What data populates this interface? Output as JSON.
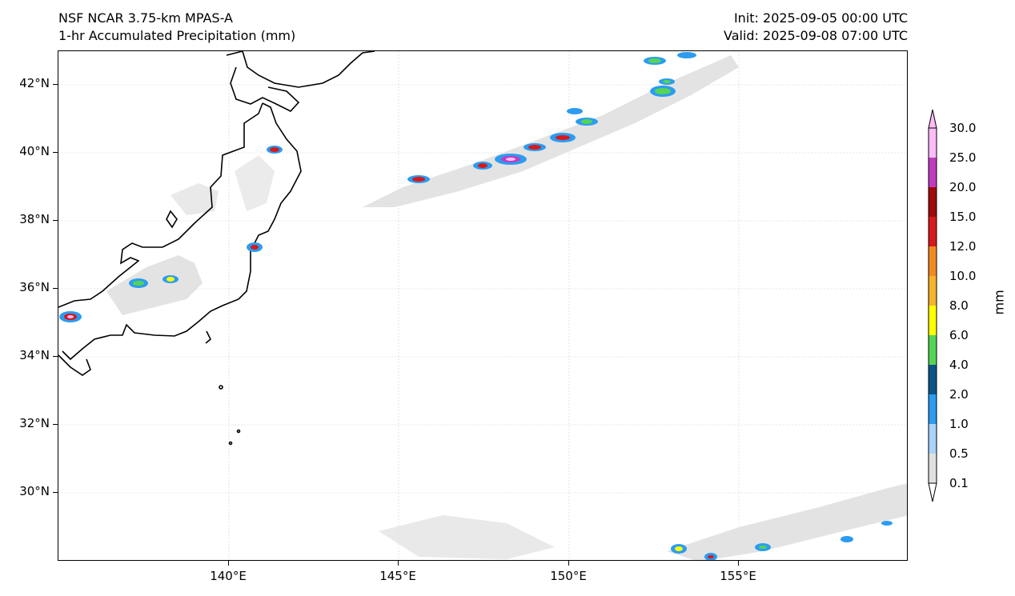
{
  "header": {
    "model": "NSF NCAR 3.75-km MPAS-A",
    "field": "1-hr Accumulated Precipitation (mm)",
    "init": "Init: 2025-09-05 00:00 UTC",
    "valid": "Valid: 2025-09-08 07:00 UTC"
  },
  "axes": {
    "lat_labels": [
      "42°N",
      "40°N",
      "38°N",
      "36°N",
      "34°N",
      "32°N",
      "30°N"
    ],
    "lon_labels": [
      "140°E",
      "145°E",
      "150°E",
      "155°E"
    ]
  },
  "colorbar": {
    "units": "mm",
    "levels": [
      "0.1",
      "0.5",
      "1.0",
      "2.0",
      "4.0",
      "6.0",
      "8.0",
      "10.0",
      "12.0",
      "15.0",
      "20.0",
      "25.0",
      "30.0"
    ],
    "colors": [
      "#e0e0e0",
      "#a8d4fa",
      "#2b9cf0",
      "#0c5487",
      "#55d455",
      "#ffff00",
      "#f7b32b",
      "#f28a22",
      "#d7191c",
      "#9e0a0a",
      "#c03cbf",
      "#fbbcf8"
    ]
  }
}
